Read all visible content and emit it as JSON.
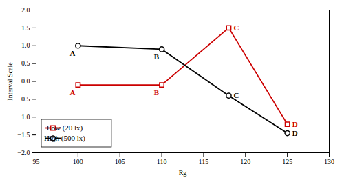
{
  "chart_data": {
    "type": "line",
    "x": [
      100,
      110,
      118,
      125
    ],
    "series": [
      {
        "name": "Low (20 lx)",
        "color": "#cc0000",
        "marker": "square",
        "values": [
          -0.1,
          -0.1,
          1.5,
          -1.2
        ],
        "labels": [
          "A",
          "B",
          "C",
          "D"
        ]
      },
      {
        "name": "High (500 lx)",
        "color": "#000000",
        "marker": "circle",
        "values": [
          1.0,
          0.9,
          -0.4,
          -1.45
        ],
        "labels": [
          "A",
          "B",
          "C",
          "D"
        ]
      }
    ],
    "xlabel": "Rg",
    "ylabel": "Interval Scale",
    "xlim": [
      95,
      130
    ],
    "ylim": [
      -2.0,
      2.0
    ],
    "xticks": [
      95,
      100,
      105,
      110,
      115,
      120,
      125,
      130
    ],
    "yticks": [
      {
        "value": -2.0,
        "label": "−2.0"
      },
      {
        "value": -1.5,
        "label": "−1.5"
      },
      {
        "value": -1.0,
        "label": "−1.0"
      },
      {
        "value": -0.5,
        "label": "−0.5"
      },
      {
        "value": 0.0,
        "label": "0.0"
      },
      0.5,
      {
        "value": 1.0,
        "label": "1.0"
      },
      1.5,
      {
        "value": 2.0,
        "label": "2.0"
      }
    ],
    "grid": false,
    "legend": "lower left"
  }
}
